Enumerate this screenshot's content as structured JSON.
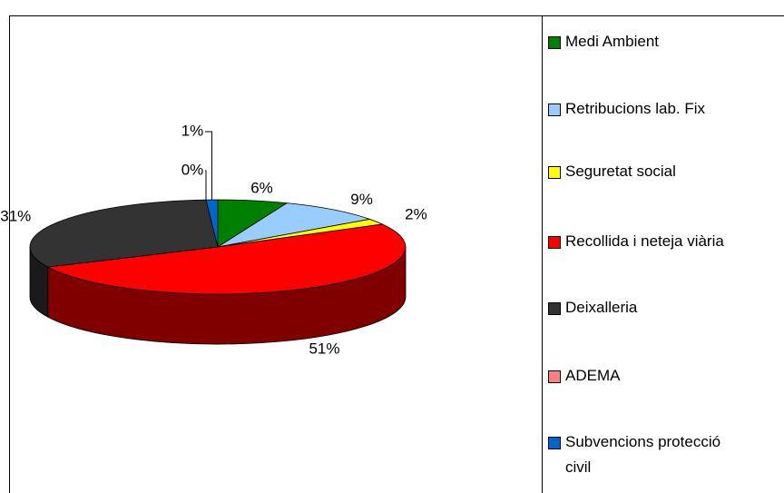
{
  "chart_data": {
    "type": "pie",
    "three_d": true,
    "categories": [
      "Medi Ambient",
      "Retribucions lab. Fix",
      "Seguretat social",
      "Recollida i neteja viària",
      "Deixalleria",
      "ADEMA",
      "Subvencions protecció civil"
    ],
    "values": [
      6,
      9,
      2,
      51,
      31,
      0,
      1
    ],
    "value_labels": [
      "6%",
      "9%",
      "2%",
      "51%",
      "31%",
      "0%",
      "1%"
    ],
    "colors": [
      "#008000",
      "#99ccff",
      "#ffff00",
      "#ff0000",
      "#333333",
      "#ff8080",
      "#0066cc"
    ],
    "legend": "right"
  }
}
